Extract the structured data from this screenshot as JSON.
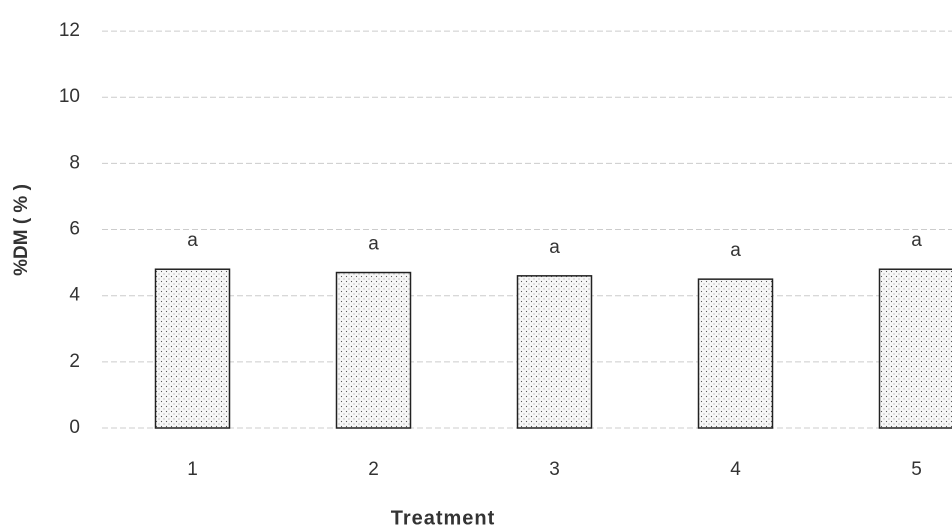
{
  "chart_data": {
    "type": "bar",
    "x_label": "Treatment",
    "y_label": "%DM ( % )",
    "categories": [
      "1",
      "2",
      "3",
      "4",
      "5"
    ],
    "values": [
      4.8,
      4.7,
      4.6,
      4.5,
      4.8
    ],
    "letters": [
      "a",
      "a",
      "a",
      "a",
      "a"
    ],
    "color": "#f4f4f4",
    "ylim": [
      0,
      13
    ],
    "yticks": [
      0,
      2,
      4,
      6,
      8,
      10,
      12
    ],
    "grid": true
  }
}
